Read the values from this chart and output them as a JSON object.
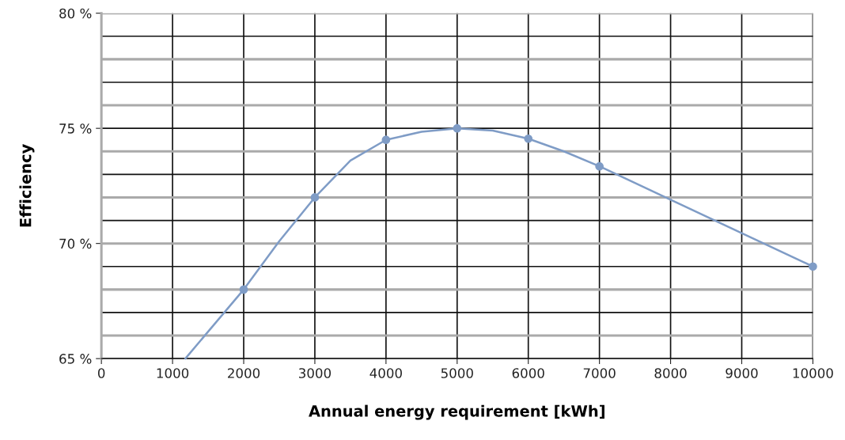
{
  "chart_data": {
    "type": "line",
    "xlabel": "Annual energy requirement [kWh]",
    "ylabel": "Efficiency",
    "xlim": [
      0,
      10000
    ],
    "xticks": [
      0,
      1000,
      2000,
      3000,
      4000,
      5000,
      6000,
      7000,
      8000,
      9000,
      10000
    ],
    "ylim": [
      65,
      80
    ],
    "yticks": [
      {
        "value": 65,
        "label": "65 %"
      },
      {
        "value": 66,
        "label": null
      },
      {
        "value": 67,
        "label": null
      },
      {
        "value": 68,
        "label": null
      },
      {
        "value": 69,
        "label": null
      },
      {
        "value": 70,
        "label": "70 %"
      },
      {
        "value": 71,
        "label": null
      },
      {
        "value": 72,
        "label": null
      },
      {
        "value": 73,
        "label": null
      },
      {
        "value": 74,
        "label": null
      },
      {
        "value": 75,
        "label": "75 %"
      },
      {
        "value": 76,
        "label": null
      },
      {
        "value": 77,
        "label": null
      },
      {
        "value": 78,
        "label": null
      },
      {
        "value": 79,
        "label": null
      },
      {
        "value": 80,
        "label": "80 %"
      }
    ],
    "grid": true,
    "series": [
      {
        "color": "#7f9cc6",
        "x": [
          1180,
          2000,
          2500,
          3000,
          3500,
          4000,
          4500,
          5000,
          5500,
          6000,
          6500,
          7000,
          8000,
          9000,
          10000
        ],
        "values": [
          65,
          68,
          70.1,
          72,
          73.6,
          74.5,
          74.85,
          75,
          74.9,
          74.55,
          74.0,
          73.35,
          71.9,
          70.45,
          69
        ]
      },
      {
        "type": "scatter",
        "marker": "circle",
        "color": "#7f9cc6",
        "x": [
          2000,
          3000,
          4000,
          5000,
          6000,
          7000,
          10000
        ],
        "values": [
          68,
          72,
          74.5,
          75,
          74.55,
          73.35,
          69
        ]
      }
    ]
  }
}
